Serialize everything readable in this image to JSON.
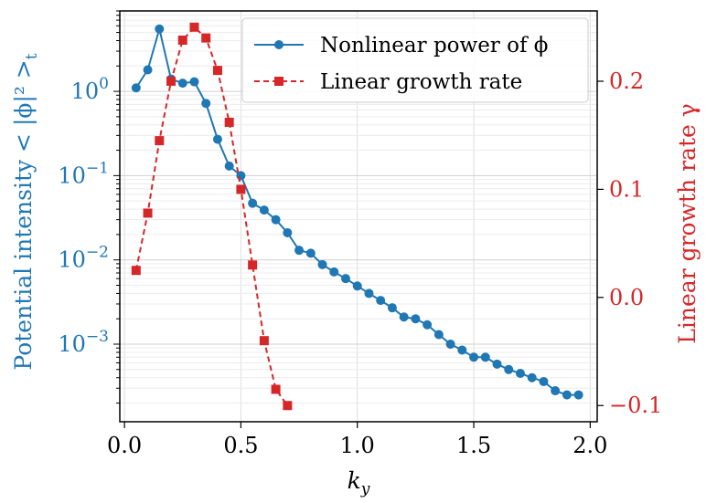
{
  "colors": {
    "left_series": "#1f77b4",
    "right_series": "#d62728",
    "grid": "#dddddd",
    "axis": "#000000"
  },
  "chart_data": {
    "type": "line",
    "title": "",
    "x_axis": {
      "label": "k",
      "label_subscript": "y",
      "range": [
        -0.02,
        2.03
      ],
      "ticks": [
        0.0,
        0.5,
        1.0,
        1.5,
        2.0
      ],
      "tick_labels": [
        "0.0",
        "0.5",
        "1.0",
        "1.5",
        "2.0"
      ]
    },
    "y_left": {
      "label": "Potential intensity < |ϕ|² >",
      "label_subscript": "t",
      "scale": "log",
      "range": [
        0.00012,
        9
      ],
      "ticks": [
        0.001,
        0.01,
        0.1,
        1
      ],
      "tick_bases": [
        "10",
        "10",
        "10",
        "10"
      ],
      "tick_exponents": [
        "−3",
        "−2",
        "−1",
        "0"
      ]
    },
    "y_right": {
      "label": "Linear growth rate γ",
      "scale": "linear",
      "range": [
        -0.115,
        0.265
      ],
      "ticks": [
        -0.1,
        0.0,
        0.1,
        0.2
      ],
      "tick_labels": [
        "−0.1",
        "0.0",
        "0.1",
        "0.2"
      ]
    },
    "grid": true,
    "legend_position": "top-right",
    "series": [
      {
        "name": "Nonlinear power of ϕ",
        "axis": "left",
        "marker": "circle",
        "linestyle": "solid",
        "color": "#1f77b4",
        "x": [
          0.05,
          0.1,
          0.15,
          0.2,
          0.25,
          0.3,
          0.35,
          0.4,
          0.45,
          0.5,
          0.55,
          0.6,
          0.65,
          0.7,
          0.75,
          0.8,
          0.85,
          0.9,
          0.95,
          1.0,
          1.05,
          1.1,
          1.15,
          1.2,
          1.25,
          1.3,
          1.35,
          1.4,
          1.45,
          1.5,
          1.55,
          1.6,
          1.65,
          1.7,
          1.75,
          1.8,
          1.85,
          1.9,
          1.95
        ],
        "y": [
          1.1,
          1.8,
          5.5,
          1.4,
          1.25,
          1.3,
          0.72,
          0.27,
          0.13,
          0.1,
          0.047,
          0.039,
          0.03,
          0.021,
          0.013,
          0.012,
          0.0088,
          0.0072,
          0.006,
          0.0049,
          0.004,
          0.0033,
          0.0027,
          0.0021,
          0.002,
          0.0017,
          0.0013,
          0.001,
          0.00085,
          0.0007,
          0.0007,
          0.00058,
          0.0005,
          0.00045,
          0.0004,
          0.00036,
          0.00028,
          0.00025,
          0.00025
        ]
      },
      {
        "name": "Linear growth rate",
        "axis": "right",
        "marker": "square",
        "linestyle": "dashed",
        "color": "#d62728",
        "x": [
          0.05,
          0.1,
          0.15,
          0.2,
          0.25,
          0.3,
          0.35,
          0.4,
          0.45,
          0.5,
          0.55,
          0.6,
          0.65,
          0.7
        ],
        "y": [
          0.025,
          0.078,
          0.145,
          0.2,
          0.238,
          0.25,
          0.24,
          0.21,
          0.162,
          0.1,
          0.03,
          -0.04,
          -0.085,
          -0.1
        ]
      }
    ]
  }
}
